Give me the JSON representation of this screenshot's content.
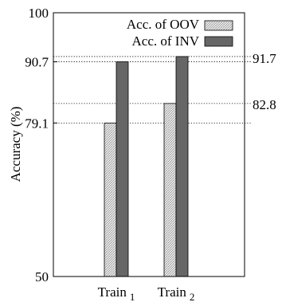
{
  "chart_data": {
    "type": "bar",
    "categories": [
      {
        "base": "Train",
        "sub": "1"
      },
      {
        "base": "Train",
        "sub": "2"
      }
    ],
    "series": [
      {
        "name": "Acc. of OOV",
        "values": [
          79.1,
          82.8
        ],
        "pattern": "hatched-light-gray"
      },
      {
        "name": "Acc. of INV",
        "values": [
          90.7,
          91.7
        ],
        "color": "#666666"
      }
    ],
    "ylabel": "Accuracy (%)",
    "ylim": [
      50,
      100
    ],
    "yticks": [
      "50",
      "79.1",
      "90.7",
      "100"
    ],
    "right_annotations": [
      "91.7",
      "82.8"
    ],
    "reference_lines": [
      79.1,
      90.7,
      91.7,
      82.8
    ],
    "legend": {
      "position": "top-right"
    },
    "grid": false
  }
}
